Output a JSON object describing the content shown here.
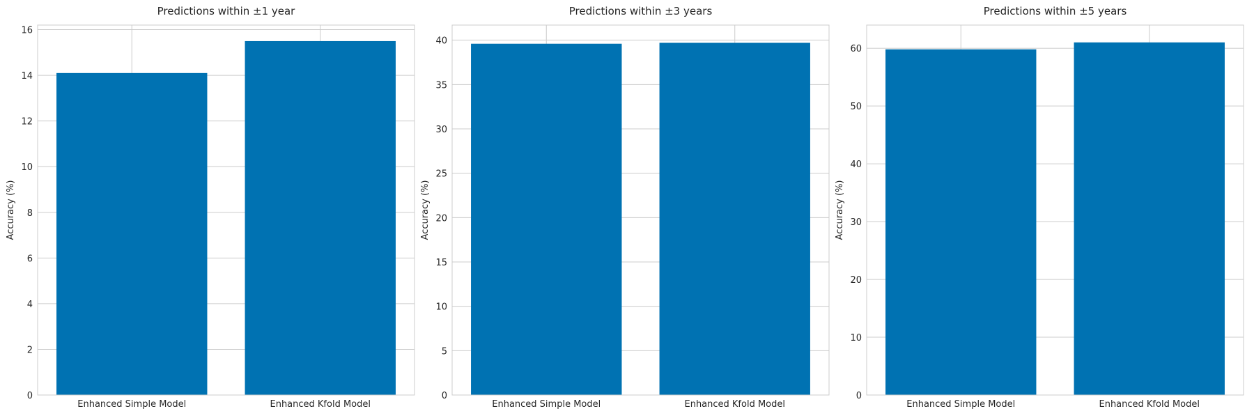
{
  "style": {
    "bar_color": "#0072b2",
    "grid_color": "#cccccc",
    "spine_color": "#cccccc",
    "text_color": "#262626",
    "background": "#ffffff"
  },
  "chart_data": [
    {
      "type": "bar",
      "title": "Predictions within ±1 year",
      "ylabel": "Accuracy (%)",
      "xlabel": "",
      "categories": [
        "Enhanced Simple Model",
        "Enhanced Kfold Model"
      ],
      "values": [
        14.1,
        15.5
      ],
      "ylim": [
        0,
        16.2
      ],
      "yticks": [
        "0",
        "2",
        "4",
        "6",
        "8",
        "10",
        "12",
        "14",
        "16"
      ],
      "grid": true,
      "legend": "none"
    },
    {
      "type": "bar",
      "title": "Predictions within ±3 years",
      "ylabel": "Accuracy (%)",
      "xlabel": "",
      "categories": [
        "Enhanced Simple Model",
        "Enhanced Kfold Model"
      ],
      "values": [
        39.6,
        39.7
      ],
      "ylim": [
        0,
        41.7
      ],
      "yticks": [
        "0",
        "5",
        "10",
        "15",
        "20",
        "25",
        "30",
        "35",
        "40"
      ],
      "grid": true,
      "legend": "none"
    },
    {
      "type": "bar",
      "title": "Predictions within ±5 years",
      "ylabel": "Accuracy (%)",
      "xlabel": "",
      "categories": [
        "Enhanced Simple Model",
        "Enhanced Kfold Model"
      ],
      "values": [
        59.8,
        61.0
      ],
      "ylim": [
        0,
        64.0
      ],
      "yticks": [
        "0",
        "10",
        "20",
        "30",
        "40",
        "50",
        "60"
      ],
      "grid": true,
      "legend": "none"
    }
  ]
}
